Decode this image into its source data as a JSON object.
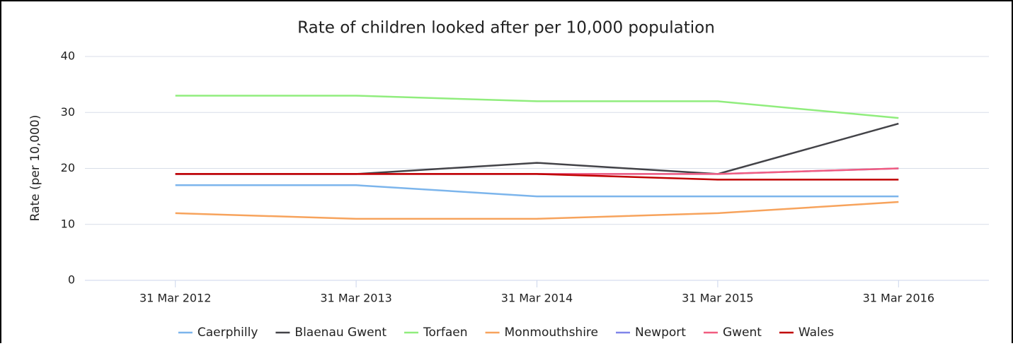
{
  "chart_data": {
    "type": "line",
    "title": "Rate of children looked after per 10,000 population",
    "y_label": "Rate (per 10,000)",
    "categories": [
      "31 Mar 2012",
      "31 Mar 2013",
      "31 Mar 2014",
      "31 Mar 2015",
      "31 Mar 2016"
    ],
    "series": [
      {
        "name": "Caerphilly",
        "color": "#7cb5ec",
        "values": [
          17,
          17,
          15,
          15,
          15
        ]
      },
      {
        "name": "Blaenau Gwent",
        "color": "#434348",
        "values": [
          19,
          19,
          21,
          19,
          28
        ]
      },
      {
        "name": "Torfaen",
        "color": "#90ed7d",
        "values": [
          33,
          33,
          32,
          32,
          29
        ]
      },
      {
        "name": "Monmouthshire",
        "color": "#f7a35c",
        "values": [
          12,
          11,
          11,
          12,
          14
        ]
      },
      {
        "name": "Newport",
        "color": "#8085e9",
        "values": [
          19,
          19,
          19,
          19,
          20
        ]
      },
      {
        "name": "Gwent",
        "color": "#f15c80",
        "values": [
          19,
          19,
          19,
          19,
          20
        ]
      },
      {
        "name": "Wales",
        "color": "#c00000",
        "values": [
          19,
          19,
          19,
          18,
          18
        ]
      }
    ],
    "ylim": [
      0,
      40
    ],
    "yticks": [
      0,
      10,
      20,
      30,
      40
    ],
    "grid": true,
    "legend": "bottom"
  }
}
